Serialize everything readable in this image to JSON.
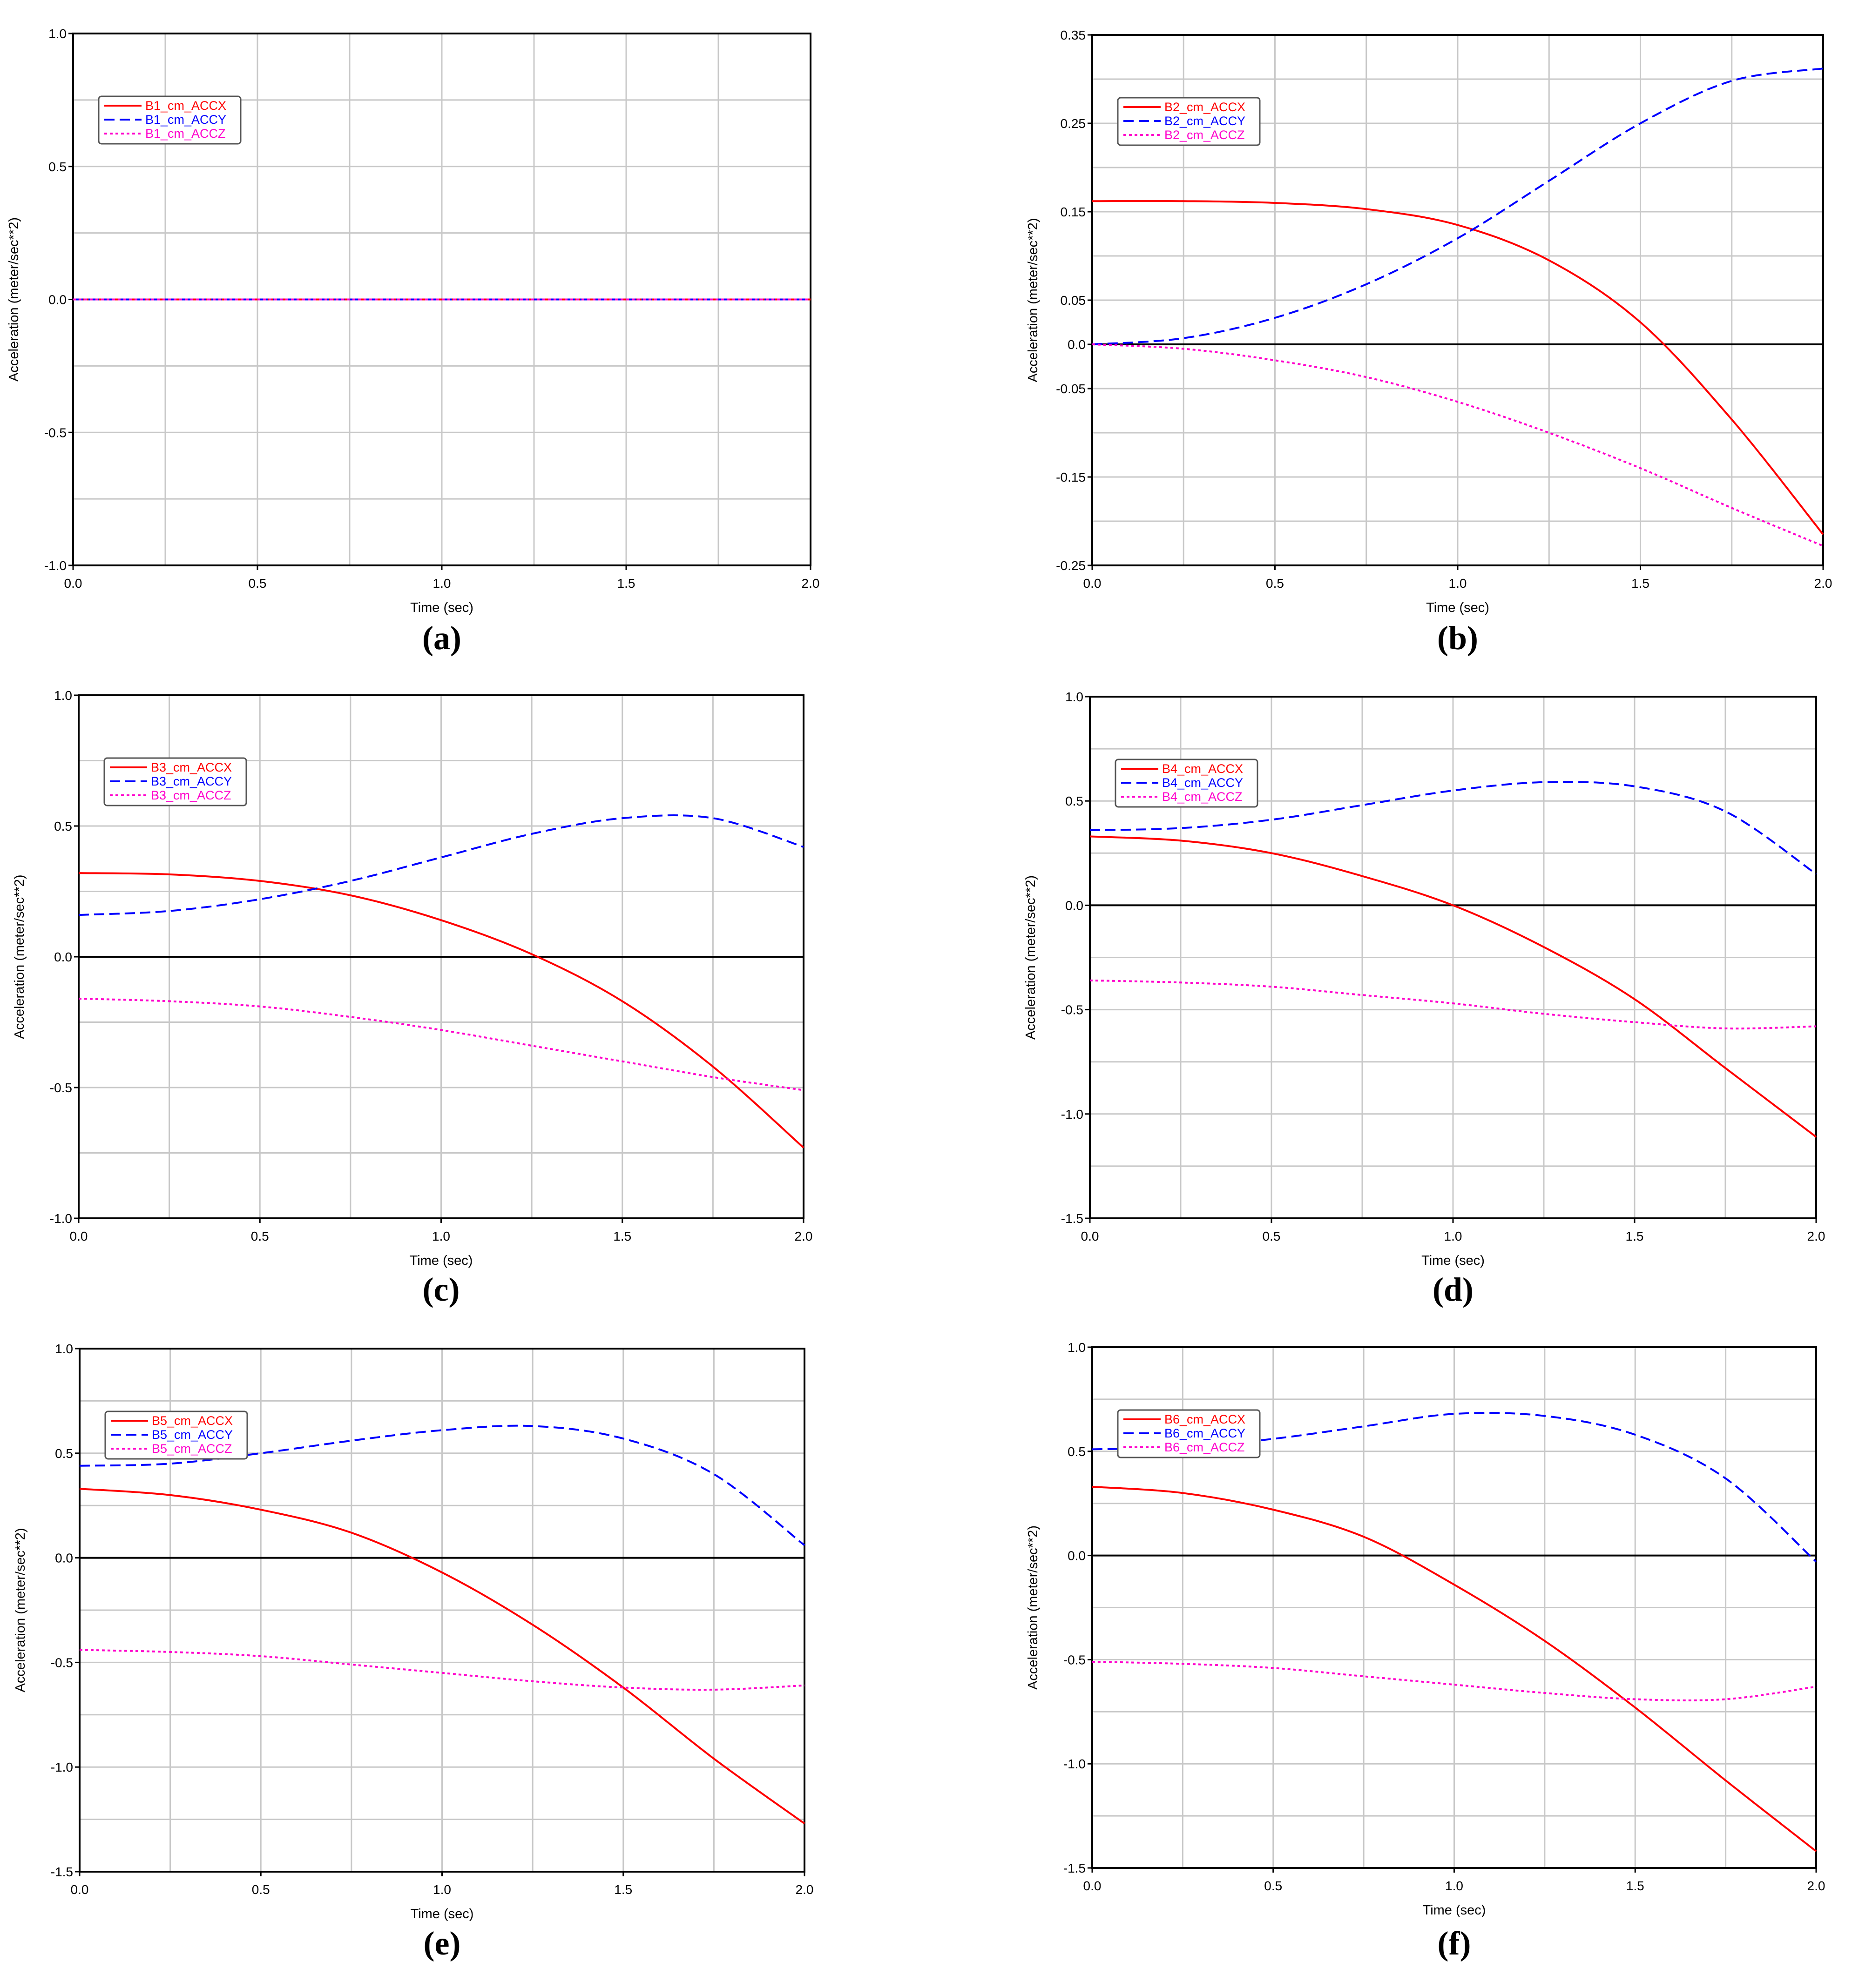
{
  "colors": {
    "accx": "#ff0000",
    "accy": "#0000ff",
    "accz": "#ff00cc",
    "grid": "#c8c8c8",
    "zero": "#000000"
  },
  "chart_data": [
    {
      "type": "line",
      "caption": "(a)",
      "xlabel": "Time (sec)",
      "ylabel": "Acceleration (meter/sec**2)",
      "xlim": [
        0,
        2.0
      ],
      "ylim": [
        -1.0,
        1.0
      ],
      "xticks": [
        0,
        0.5,
        1.0,
        1.5,
        2.0
      ],
      "xtick_labels": [
        "0.0",
        "0.5",
        "1.0",
        "1.5",
        "2.0"
      ],
      "yticks": [
        -1.0,
        -0.5,
        0.0,
        0.5,
        1.0
      ],
      "ytick_labels": [
        "-1.0",
        "-0.5",
        "0.0",
        "0.5",
        "1.0"
      ],
      "ygrid": [
        -1.0,
        -0.75,
        -0.5,
        -0.25,
        0.0,
        0.25,
        0.5,
        0.75,
        1.0
      ],
      "zero_line": false,
      "x": [
        0,
        0.25,
        0.5,
        0.75,
        1.0,
        1.25,
        1.5,
        1.75,
        2.0
      ],
      "series": [
        {
          "name": "B1_cm_ACCX",
          "style": "solid",
          "values": [
            0,
            0,
            0,
            0,
            0,
            0,
            0,
            0,
            0
          ]
        },
        {
          "name": "B1_cm_ACCY",
          "style": "dashed",
          "values": [
            0,
            0,
            0,
            0,
            0,
            0,
            0,
            0,
            0
          ]
        },
        {
          "name": "B1_cm_ACCZ",
          "style": "dotted",
          "values": [
            0,
            0,
            0,
            0,
            0,
            0,
            0,
            0,
            0
          ]
        }
      ]
    },
    {
      "type": "line",
      "caption": "(b)",
      "xlabel": "Time (sec)",
      "ylabel": "Acceleration (meter/sec**2)",
      "xlim": [
        0,
        2.0
      ],
      "ylim": [
        -0.25,
        0.35
      ],
      "xticks": [
        0,
        0.5,
        1.0,
        1.5,
        2.0
      ],
      "xtick_labels": [
        "0.0",
        "0.5",
        "1.0",
        "1.5",
        "2.0"
      ],
      "yticks": [
        -0.25,
        -0.15,
        -0.05,
        0.0,
        0.05,
        0.15,
        0.25,
        0.35
      ],
      "ytick_labels": [
        "-0.25",
        "-0.15",
        "-0.05",
        "0.0",
        "0.05",
        "0.15",
        "0.25",
        "0.35"
      ],
      "ygrid": [
        -0.25,
        -0.2,
        -0.15,
        -0.1,
        -0.05,
        0.0,
        0.05,
        0.1,
        0.15,
        0.2,
        0.25,
        0.3,
        0.35
      ],
      "zero_line": true,
      "x": [
        0,
        0.25,
        0.5,
        0.75,
        1.0,
        1.25,
        1.5,
        1.75,
        2.0
      ],
      "series": [
        {
          "name": "B2_cm_ACCX",
          "style": "solid",
          "values": [
            0.162,
            0.162,
            0.16,
            0.153,
            0.135,
            0.095,
            0.025,
            -0.085,
            -0.215
          ]
        },
        {
          "name": "B2_cm_ACCY",
          "style": "dashed",
          "values": [
            0,
            0.007,
            0.03,
            0.068,
            0.12,
            0.185,
            0.25,
            0.298,
            0.312
          ]
        },
        {
          "name": "B2_cm_ACCZ",
          "style": "dotted",
          "values": [
            0,
            -0.005,
            -0.018,
            -0.037,
            -0.065,
            -0.1,
            -0.14,
            -0.185,
            -0.228
          ]
        }
      ]
    },
    {
      "type": "line",
      "caption": "(c)",
      "xlabel": "Time (sec)",
      "ylabel": "Acceleration (meter/sec**2)",
      "xlim": [
        0,
        2.0
      ],
      "ylim": [
        -1.0,
        1.0
      ],
      "xticks": [
        0,
        0.5,
        1.0,
        1.5,
        2.0
      ],
      "xtick_labels": [
        "0.0",
        "0.5",
        "1.0",
        "1.5",
        "2.0"
      ],
      "yticks": [
        -1.0,
        -0.5,
        0.0,
        0.5,
        1.0
      ],
      "ytick_labels": [
        "-1.0",
        "-0.5",
        "0.0",
        "0.5",
        "1.0"
      ],
      "ygrid": [
        -1.0,
        -0.75,
        -0.5,
        -0.25,
        0.0,
        0.25,
        0.5,
        0.75,
        1.0
      ],
      "zero_line": true,
      "x": [
        0,
        0.25,
        0.5,
        0.75,
        1.0,
        1.25,
        1.5,
        1.75,
        2.0
      ],
      "series": [
        {
          "name": "B3_cm_ACCX",
          "style": "solid",
          "values": [
            0.32,
            0.315,
            0.29,
            0.235,
            0.14,
            0.01,
            -0.17,
            -0.42,
            -0.73
          ]
        },
        {
          "name": "B3_cm_ACCY",
          "style": "dashed",
          "values": [
            0.16,
            0.175,
            0.22,
            0.29,
            0.38,
            0.47,
            0.53,
            0.53,
            0.42
          ]
        },
        {
          "name": "B3_cm_ACCZ",
          "style": "dotted",
          "values": [
            -0.16,
            -0.17,
            -0.19,
            -0.23,
            -0.28,
            -0.34,
            -0.4,
            -0.46,
            -0.51
          ]
        }
      ]
    },
    {
      "type": "line",
      "caption": "(d)",
      "xlabel": "Time (sec)",
      "ylabel": "Acceleration (meter/sec**2)",
      "xlim": [
        0,
        2.0
      ],
      "ylim": [
        -1.5,
        1.0
      ],
      "xticks": [
        0,
        0.5,
        1.0,
        1.5,
        2.0
      ],
      "xtick_labels": [
        "0.0",
        "0.5",
        "1.0",
        "1.5",
        "2.0"
      ],
      "yticks": [
        -1.5,
        -1.0,
        -0.5,
        0.0,
        0.5,
        1.0
      ],
      "ytick_labels": [
        "-1.5",
        "-1.0",
        "-0.5",
        "0.0",
        "0.5",
        "1.0"
      ],
      "ygrid": [
        -1.5,
        -1.25,
        -1.0,
        -0.75,
        -0.5,
        -0.25,
        0.0,
        0.25,
        0.5,
        0.75,
        1.0
      ],
      "zero_line": true,
      "x": [
        0,
        0.25,
        0.5,
        0.75,
        1.0,
        1.25,
        1.5,
        1.75,
        2.0
      ],
      "series": [
        {
          "name": "B4_cm_ACCX",
          "style": "solid",
          "values": [
            0.33,
            0.31,
            0.25,
            0.14,
            0.0,
            -0.2,
            -0.45,
            -0.78,
            -1.11
          ]
        },
        {
          "name": "B4_cm_ACCY",
          "style": "dashed",
          "values": [
            0.36,
            0.37,
            0.41,
            0.48,
            0.55,
            0.59,
            0.57,
            0.45,
            0.15
          ]
        },
        {
          "name": "B4_cm_ACCZ",
          "style": "dotted",
          "values": [
            -0.36,
            -0.37,
            -0.39,
            -0.43,
            -0.47,
            -0.52,
            -0.56,
            -0.59,
            -0.58
          ]
        }
      ]
    },
    {
      "type": "line",
      "caption": "(e)",
      "xlabel": "Time (sec)",
      "ylabel": "Acceleration (meter/sec**2)",
      "xlim": [
        0,
        2.0
      ],
      "ylim": [
        -1.5,
        1.0
      ],
      "xticks": [
        0,
        0.5,
        1.0,
        1.5,
        2.0
      ],
      "xtick_labels": [
        "0.0",
        "0.5",
        "1.0",
        "1.5",
        "2.0"
      ],
      "yticks": [
        -1.5,
        -1.0,
        -0.5,
        0.0,
        0.5,
        1.0
      ],
      "ytick_labels": [
        "-1.5",
        "-1.0",
        "-0.5",
        "0.0",
        "0.5",
        "1.0"
      ],
      "ygrid": [
        -1.5,
        -1.25,
        -1.0,
        -0.75,
        -0.5,
        -0.25,
        0.0,
        0.25,
        0.5,
        0.75,
        1.0
      ],
      "zero_line": true,
      "x": [
        0,
        0.25,
        0.5,
        0.75,
        1.0,
        1.25,
        1.5,
        1.75,
        2.0
      ],
      "series": [
        {
          "name": "B5_cm_ACCX",
          "style": "solid",
          "values": [
            0.33,
            0.3,
            0.23,
            0.12,
            -0.07,
            -0.32,
            -0.62,
            -0.96,
            -1.27
          ]
        },
        {
          "name": "B5_cm_ACCY",
          "style": "dashed",
          "values": [
            0.44,
            0.45,
            0.5,
            0.56,
            0.61,
            0.63,
            0.57,
            0.4,
            0.06
          ]
        },
        {
          "name": "B5_cm_ACCZ",
          "style": "dotted",
          "values": [
            -0.44,
            -0.45,
            -0.47,
            -0.51,
            -0.55,
            -0.59,
            -0.62,
            -0.63,
            -0.61
          ]
        }
      ]
    },
    {
      "type": "line",
      "caption": "(f)",
      "xlabel": "Time (sec)",
      "ylabel": "Acceleration (meter/sec**2)",
      "xlim": [
        0,
        2.0
      ],
      "ylim": [
        -1.5,
        1.0
      ],
      "xticks": [
        0,
        0.5,
        1.0,
        1.5,
        2.0
      ],
      "xtick_labels": [
        "0.0",
        "0.5",
        "1.0",
        "1.5",
        "2.0"
      ],
      "yticks": [
        -1.5,
        -1.0,
        -0.5,
        0.0,
        0.5,
        1.0
      ],
      "ytick_labels": [
        "-1.5",
        "-1.0",
        "-0.5",
        "0.0",
        "0.5",
        "1.0"
      ],
      "ygrid": [
        -1.5,
        -1.25,
        -1.0,
        -0.75,
        -0.5,
        -0.25,
        0.0,
        0.25,
        0.5,
        0.75,
        1.0
      ],
      "zero_line": true,
      "x": [
        0,
        0.25,
        0.5,
        0.75,
        1.0,
        1.25,
        1.5,
        1.75,
        2.0
      ],
      "series": [
        {
          "name": "B6_cm_ACCX",
          "style": "solid",
          "values": [
            0.33,
            0.3,
            0.22,
            0.09,
            -0.14,
            -0.41,
            -0.73,
            -1.08,
            -1.42
          ]
        },
        {
          "name": "B6_cm_ACCY",
          "style": "dashed",
          "values": [
            0.51,
            0.52,
            0.56,
            0.62,
            0.68,
            0.67,
            0.58,
            0.37,
            -0.03
          ]
        },
        {
          "name": "B6_cm_ACCZ",
          "style": "dotted",
          "values": [
            -0.51,
            -0.52,
            -0.54,
            -0.58,
            -0.62,
            -0.66,
            -0.69,
            -0.69,
            -0.63
          ]
        }
      ]
    }
  ]
}
